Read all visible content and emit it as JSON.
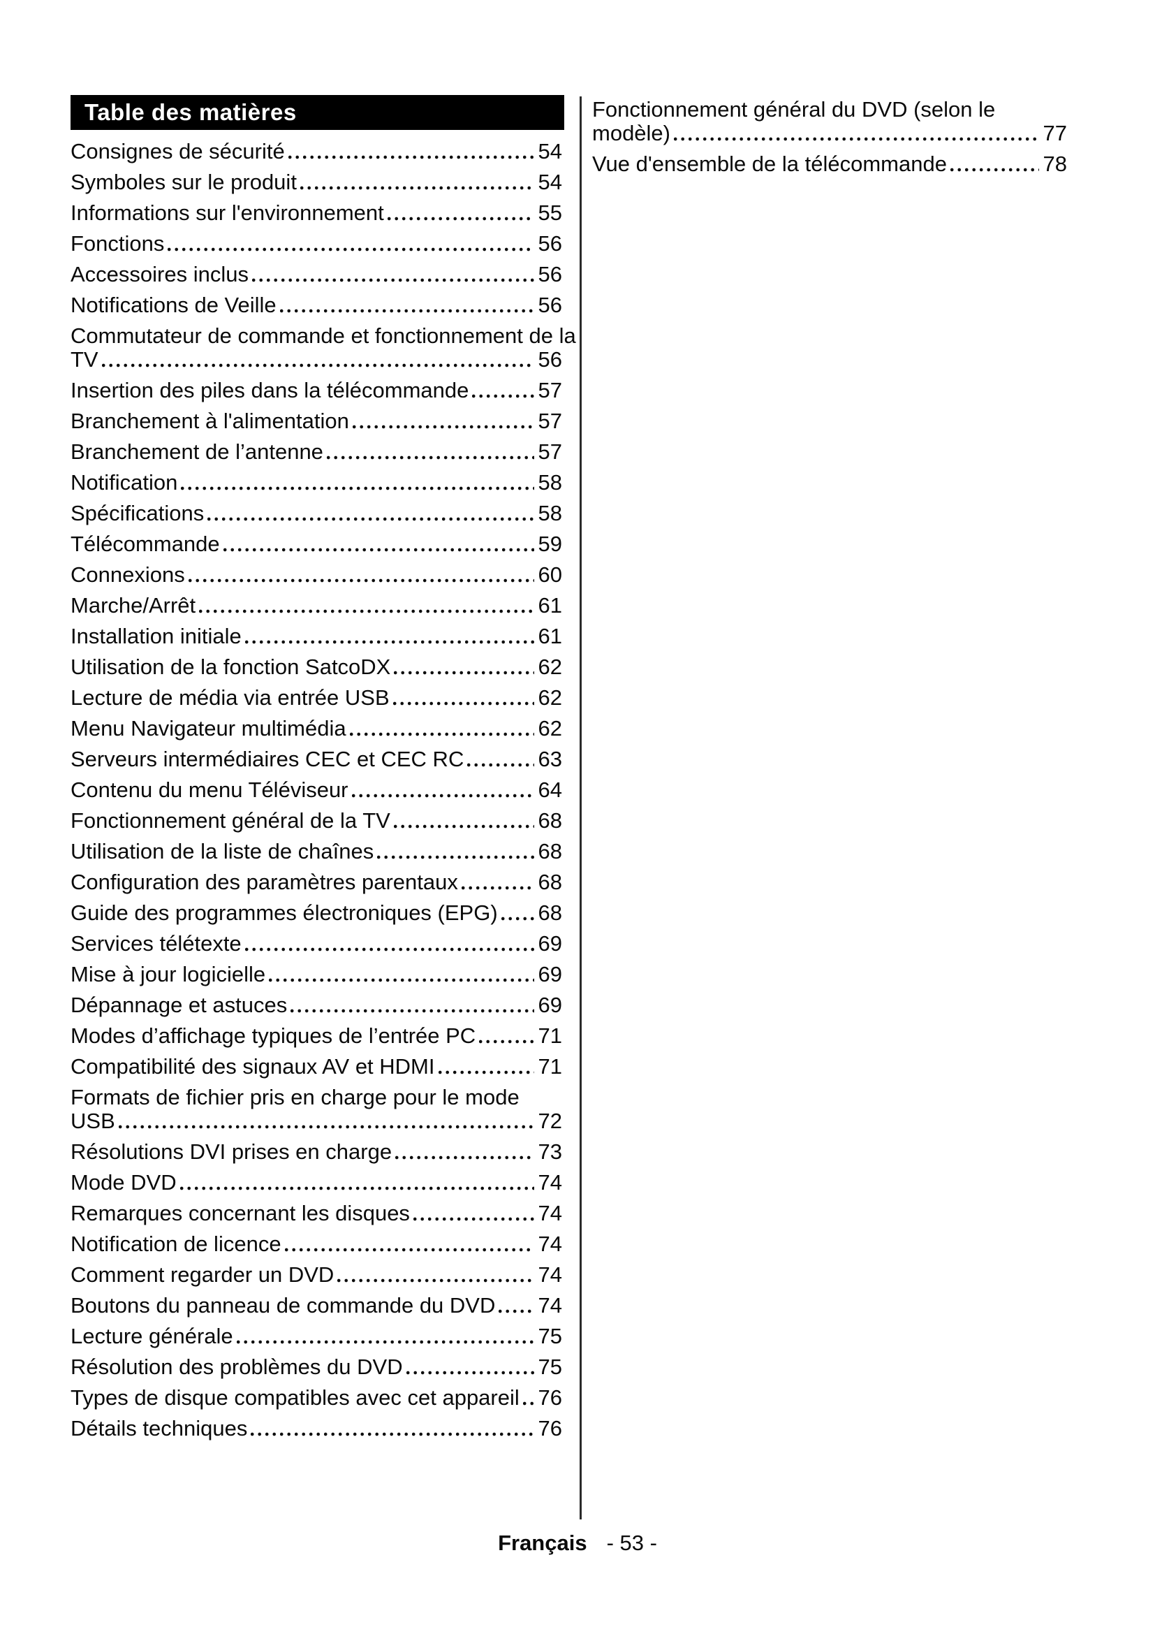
{
  "header": {
    "title": "Table des matières"
  },
  "toc": {
    "left_column": [
      {
        "label": "Consignes de sécurité",
        "page": "54"
      },
      {
        "label": "Symboles sur le produit",
        "page": "54"
      },
      {
        "label": "Informations sur l'environnement",
        "page": "55"
      },
      {
        "label": "Fonctions",
        "page": "56"
      },
      {
        "label": "Accessoires inclus",
        "page": "56"
      },
      {
        "label": "Notifications de Veille",
        "page": "56"
      },
      {
        "wrap": "Commutateur de commande et fonctionnement de la",
        "label": "TV",
        "page": "56"
      },
      {
        "label": "Insertion des piles dans la télécommande",
        "page": "57"
      },
      {
        "label": "Branchement à l'alimentation",
        "page": "57"
      },
      {
        "label": "Branchement de l’antenne",
        "page": "57"
      },
      {
        "label": "Notification",
        "page": "58"
      },
      {
        "label": "Spécifications",
        "page": "58"
      },
      {
        "label": "Télécommande",
        "page": "59"
      },
      {
        "label": "Connexions",
        "page": "60"
      },
      {
        "label": "Marche/Arrêt",
        "page": "61"
      },
      {
        "label": "Installation initiale",
        "page": "61"
      },
      {
        "label": "Utilisation de la fonction SatcoDX",
        "page": "62"
      },
      {
        "label": "Lecture de média via entrée USB",
        "page": "62"
      },
      {
        "label": "Menu Navigateur multimédia",
        "page": "62"
      },
      {
        "label": "Serveurs intermédiaires CEC et CEC RC",
        "page": "63"
      },
      {
        "label": "Contenu du menu Téléviseur",
        "page": "64"
      },
      {
        "label": "Fonctionnement général de la TV",
        "page": "68"
      },
      {
        "label": "Utilisation de la liste de chaînes",
        "page": "68"
      },
      {
        "label": "Configuration des paramètres parentaux",
        "page": "68"
      },
      {
        "label": "Guide des programmes électroniques (EPG)",
        "page": "68"
      },
      {
        "label": "Services télétexte",
        "page": "69"
      },
      {
        "label": "Mise à jour logicielle",
        "page": "69"
      },
      {
        "label": "Dépannage et astuces",
        "page": "69"
      },
      {
        "label": "Modes d’affichage typiques de l’entrée PC",
        "page": "71"
      },
      {
        "label": "Compatibilité des signaux AV et HDMI",
        "page": "71"
      },
      {
        "wrap": "Formats de fichier pris en charge pour le mode",
        "label": "USB",
        "page": "72"
      },
      {
        "label": "Résolutions DVI prises en charge",
        "page": "73"
      },
      {
        "label": "Mode DVD",
        "page": "74"
      },
      {
        "label": "Remarques concernant les disques",
        "page": "74"
      },
      {
        "label": "Notification de licence",
        "page": "74"
      },
      {
        "label": "Comment regarder un DVD",
        "page": "74"
      },
      {
        "label": "Boutons du panneau de commande du DVD",
        "page": "74"
      },
      {
        "label": "Lecture générale",
        "page": "75"
      },
      {
        "label": "Résolution des problèmes du DVD",
        "page": "75"
      },
      {
        "label": "Types de disque compatibles avec cet appareil",
        "page": "76"
      },
      {
        "label": "Détails techniques",
        "page": "76"
      }
    ],
    "right_column": [
      {
        "wrap": "Fonctionnement général du DVD (selon le",
        "label": "modèle)",
        "page": "77"
      },
      {
        "label": "Vue d'ensemble de la télécommande",
        "page": "78"
      }
    ]
  },
  "footer": {
    "language": "Français",
    "page_label": "- 53 -"
  },
  "colors": {
    "header_bg": "#000000",
    "header_text": "#ffffff",
    "text": "#0a0a0a",
    "divider": "#2a2a2a",
    "page_bg": "#ffffff"
  }
}
